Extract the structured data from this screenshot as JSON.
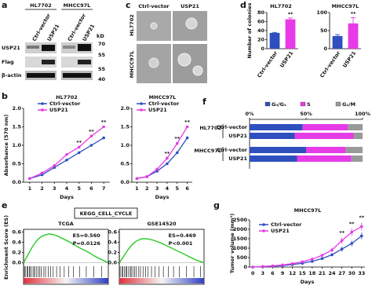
{
  "panel_labels": [
    "a",
    "b",
    "c",
    "d",
    "e",
    "f",
    "g"
  ],
  "blot": {
    "cell_lines": [
      "HL7702",
      "MHCC97L"
    ],
    "lanes": [
      "Ctrl-vector",
      "USP21",
      "Ctrl-vector",
      "USP21"
    ],
    "unit": "kD",
    "rows": [
      "USP21",
      "Flag",
      "β-actin"
    ],
    "markers": [
      "70",
      "55",
      "55",
      "40"
    ]
  },
  "colony": {
    "columns": [
      "Ctrl-vector",
      "USP21"
    ],
    "rows": [
      "HL7702",
      "MHCC97L"
    ]
  },
  "gsea_title": "KEGG_CELL_CYCLE",
  "chart_data": [
    {
      "type": "line",
      "title": "HL7702",
      "ylabel": "Absorbance (570 nm)",
      "xlabel": "Days",
      "x": [
        1,
        2,
        3,
        4,
        5,
        6,
        7
      ],
      "xlim": [
        0.5,
        7.5
      ],
      "xticks": [
        1,
        2,
        3,
        4,
        5,
        6,
        7
      ],
      "ylim": [
        0,
        2
      ],
      "yticks": [
        {
          "value": 0,
          "label": "0.0"
        },
        0.5,
        {
          "value": 1,
          "label": "1.0"
        },
        1.5,
        {
          "value": 2,
          "label": "2.0"
        }
      ],
      "series": [
        {
          "name": "Ctrl-vector",
          "color": "#2f4fbf",
          "values": [
            0.1,
            0.2,
            0.4,
            0.6,
            0.8,
            1.0,
            1.2
          ]
        },
        {
          "name": "USP21",
          "color": "#e63be6",
          "values": [
            0.1,
            0.25,
            0.45,
            0.75,
            0.95,
            1.25,
            1.5
          ]
        }
      ],
      "significance": [
        null,
        null,
        null,
        null,
        "**",
        "**",
        "**"
      ]
    },
    {
      "type": "line",
      "title": "MHCC97L",
      "xlabel": "Days",
      "x": [
        1,
        2,
        3,
        4,
        5,
        6
      ],
      "xlim": [
        0.5,
        6.5
      ],
      "xticks": [
        1,
        2,
        3,
        4,
        5,
        6
      ],
      "ylim": [
        0,
        2
      ],
      "yticks": [
        {
          "value": 0,
          "label": "0.0"
        },
        0.5,
        {
          "value": 1,
          "label": "1.0"
        },
        1.5,
        {
          "value": 2,
          "label": "2.0"
        }
      ],
      "series": [
        {
          "name": "Ctrl-vector",
          "color": "#2f4fbf",
          "values": [
            0.1,
            0.15,
            0.3,
            0.5,
            0.8,
            1.2
          ]
        },
        {
          "name": "USP21",
          "color": "#e63be6",
          "values": [
            0.1,
            0.15,
            0.35,
            0.65,
            1.05,
            1.5
          ]
        }
      ],
      "significance": [
        null,
        null,
        null,
        "**",
        "**",
        "**"
      ]
    },
    {
      "type": "bar",
      "title": "HL7702",
      "ylabel": "Number of colonies",
      "categories": [
        "Ctrl-vector",
        "USP21"
      ],
      "values": [
        35,
        65
      ],
      "errors": [
        1,
        3
      ],
      "colors": [
        "#2f4fbf",
        "#e63be6"
      ],
      "ylim": [
        0,
        80
      ],
      "yticks": [
        0,
        20,
        40,
        60,
        80
      ],
      "significance": [
        null,
        "**"
      ]
    },
    {
      "type": "bar",
      "title": "MHCC97L",
      "categories": [
        "Ctrl-vector",
        "USP21"
      ],
      "values": [
        35,
        70
      ],
      "errors": [
        4,
        16
      ],
      "colors": [
        "#2f4fbf",
        "#e63be6"
      ],
      "ylim": [
        0,
        100
      ],
      "yticks": [
        0,
        50,
        100
      ],
      "significance": [
        null,
        "**"
      ]
    },
    {
      "type": "stacked-barh",
      "groups": [
        "HL7702",
        "MHCC97L"
      ],
      "categories": [
        "Ctrl-vector",
        "USP21",
        "Ctrl-vector",
        "USP21"
      ],
      "xlim": [
        0,
        100
      ],
      "xticks": [
        {
          "value": 0,
          "label": "0%"
        },
        {
          "value": 50,
          "label": "50%"
        },
        {
          "value": 100,
          "label": "100%"
        }
      ],
      "series": [
        {
          "name": "G₀/G₁",
          "color": "#2f4fbf",
          "values": [
            47,
            40,
            50,
            42
          ]
        },
        {
          "name": "S",
          "color": "#e63be6",
          "values": [
            40,
            52,
            35,
            48
          ]
        },
        {
          "name": "G₂/M",
          "color": "#999999",
          "values": [
            13,
            8,
            15,
            10
          ]
        }
      ]
    },
    {
      "type": "gsea",
      "title": "TCGA",
      "ylabel": "Enrichment Score (ES)",
      "stats": [
        "ES=0.560",
        "P=0.0126"
      ],
      "x": [
        0,
        5,
        10,
        15,
        20,
        25,
        30,
        35,
        40,
        45,
        50,
        55,
        60,
        65,
        70,
        75,
        80,
        85,
        90,
        95,
        100
      ],
      "xlim": [
        0,
        100
      ],
      "values": [
        0,
        0.15,
        0.3,
        0.42,
        0.5,
        0.54,
        0.56,
        0.55,
        0.52,
        0.48,
        0.44,
        0.4,
        0.35,
        0.3,
        0.26,
        0.22,
        0.17,
        0.12,
        0.08,
        0.04,
        0
      ],
      "ylim": [
        -0.05,
        0.65
      ],
      "yticks": [
        {
          "value": 0,
          "label": "0.0"
        },
        0.2,
        0.4,
        0.6
      ],
      "hits": [
        1,
        2,
        4,
        5,
        7,
        8,
        10,
        12,
        13,
        15,
        17,
        19,
        21,
        24,
        26,
        29,
        32,
        35,
        39,
        43,
        48,
        53,
        59,
        66,
        74,
        83,
        92
      ],
      "color": "#33cc33"
    },
    {
      "type": "gsea",
      "title": "GSE14520",
      "stats": [
        "ES=0.469",
        "P<0.001"
      ],
      "x": [
        0,
        5,
        10,
        15,
        20,
        25,
        30,
        35,
        40,
        45,
        50,
        55,
        60,
        65,
        70,
        75,
        80,
        85,
        90,
        95,
        100
      ],
      "xlim": [
        0,
        100
      ],
      "values": [
        0,
        0.12,
        0.25,
        0.35,
        0.42,
        0.46,
        0.469,
        0.46,
        0.44,
        0.41,
        0.38,
        0.34,
        0.3,
        0.26,
        0.22,
        0.18,
        0.14,
        0.1,
        0.06,
        0.03,
        0
      ],
      "ylim": [
        -0.05,
        0.65
      ],
      "yticks": [
        {
          "value": 0,
          "label": "0.0"
        },
        0.2,
        0.4,
        0.6
      ],
      "hits": [
        1,
        3,
        4,
        6,
        8,
        9,
        11,
        13,
        14,
        16,
        18,
        20,
        23,
        25,
        28,
        31,
        34,
        38,
        42,
        47,
        52,
        58,
        64,
        71,
        79,
        88,
        96
      ],
      "color": "#33cc33"
    },
    {
      "type": "line",
      "title": "MHCC97L",
      "ylabel": "Tumor volume (mm³)",
      "xlabel": "Days",
      "x": [
        0,
        3,
        6,
        9,
        12,
        15,
        18,
        21,
        24,
        27,
        30,
        33
      ],
      "xlim": [
        -1,
        34
      ],
      "xticks": [
        0,
        3,
        6,
        9,
        12,
        15,
        18,
        21,
        24,
        27,
        30,
        33
      ],
      "ylim": [
        0,
        2500
      ],
      "yticks": [
        0,
        500,
        1000,
        1500,
        2000,
        2500
      ],
      "series": [
        {
          "name": "Ctrl-vector",
          "color": "#2f4fbf",
          "values": [
            0,
            20,
            40,
            80,
            130,
            200,
            300,
            450,
            650,
            950,
            1250,
            1650
          ],
          "errors": [
            0,
            5,
            10,
            15,
            20,
            30,
            40,
            60,
            80,
            120,
            150,
            180
          ]
        },
        {
          "name": "USP21",
          "color": "#e63be6",
          "values": [
            0,
            30,
            60,
            110,
            180,
            280,
            420,
            620,
            900,
            1400,
            1850,
            2150
          ],
          "errors": [
            0,
            5,
            10,
            20,
            30,
            40,
            60,
            80,
            120,
            160,
            200,
            220
          ]
        }
      ],
      "significance": [
        null,
        null,
        null,
        null,
        null,
        null,
        null,
        null,
        null,
        "**",
        "**",
        "**"
      ]
    }
  ]
}
